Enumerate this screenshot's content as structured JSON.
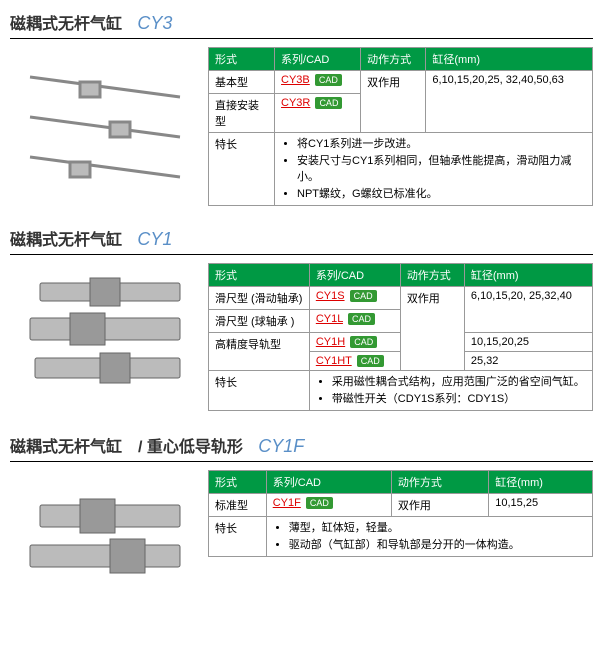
{
  "sections": [
    {
      "title": "磁耦式无杆气缸",
      "code": "CY3",
      "headers": [
        "形式",
        "系列/CAD",
        "动作方式",
        "缸径(mm)"
      ],
      "rows": [
        {
          "c0": "基本型",
          "link": "CY3B",
          "c2": "双作用",
          "c3": "6,10,15,20,25, 32,40,50,63",
          "c2span": 2,
          "c3span": 2
        },
        {
          "c0": "直接安装型",
          "link": "CY3R"
        }
      ],
      "feat_label": "特长",
      "feats": [
        "将CY1系列进一步改进。",
        "安装尺寸与CY1系列相同，但轴承性能提高，滑动阻力减小。",
        "NPT螺纹，G螺纹已标准化。"
      ]
    },
    {
      "title": "磁耦式无杆气缸",
      "code": "CY1",
      "headers": [
        "形式",
        "系列/CAD",
        "动作方式",
        "缸径(mm)"
      ],
      "rows": [
        {
          "c0": "滑尺型 (滑动轴承)",
          "link": "CY1S",
          "c2": "双作用",
          "c3": "6,10,15,20, 25,32,40",
          "c2span": 4,
          "c3span": 2
        },
        {
          "c0": "滑尺型 (球轴承 )",
          "link": "CY1L"
        },
        {
          "c0": "高精度导轨型",
          "link": "CY1H",
          "c3": "10,15,20,25",
          "linkextra": "CY1HT",
          "c3extra": "25,32"
        }
      ],
      "feat_label": "特长",
      "feats": [
        "采用磁性耦合式结构，应用范围广泛的省空间气缸。",
        "带磁性开关（CDY1S系列：CDY1S）"
      ]
    },
    {
      "title": "磁耦式无杆气缸　/ 重心低导轨形",
      "code": "CY1F",
      "headers": [
        "形式",
        "系列/CAD",
        "动作方式",
        "缸径(mm)"
      ],
      "rows": [
        {
          "c0": "标准型",
          "link": "CY1F",
          "c2": "双作用",
          "c3": "10,15,25"
        }
      ],
      "feat_label": "特长",
      "feats": [
        "薄型，缸体短，轻量。",
        "驱动部（气缸部）和导轨部是分开的一体构造。"
      ]
    }
  ],
  "cad_label": "CAD"
}
